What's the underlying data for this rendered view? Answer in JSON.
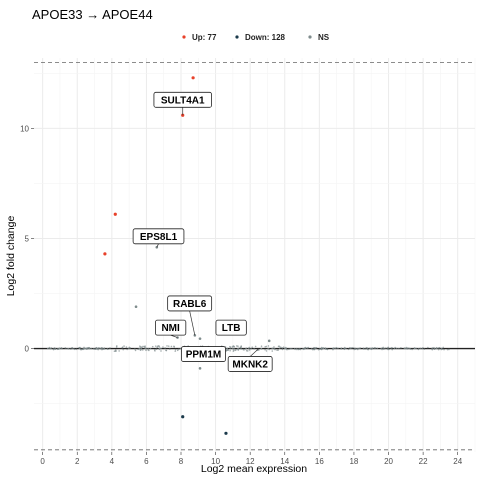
{
  "chart_data": {
    "type": "scatter",
    "title": "APOE33 → APOE44",
    "xlabel": "Log2 mean expression",
    "ylabel": "Log2 fold change",
    "xlim": [
      -0.5,
      25
    ],
    "ylim": [
      -4.7,
      13.2
    ],
    "x_ticks": [
      "0",
      "2",
      "4",
      "6",
      "8",
      "10",
      "12",
      "14",
      "16",
      "18",
      "20",
      "22",
      "24"
    ],
    "y_ticks": [
      "0",
      "5",
      "10"
    ],
    "grid": true,
    "legend_position": "top",
    "colors": {
      "up": "#e8412a",
      "down": "#1b3a4b",
      "ns": "#7f8c8d",
      "baseline": "#222222",
      "threshold": "#666666"
    },
    "thresholds": [
      13.0,
      -4.6
    ],
    "legend": [
      {
        "key": "up",
        "label": "Up: 77"
      },
      {
        "key": "down",
        "label": "Down: 128"
      },
      {
        "key": "ns",
        "label": "NS"
      }
    ],
    "points": [
      {
        "x": 8.7,
        "y": 12.3,
        "group": "up"
      },
      {
        "x": 8.1,
        "y": 10.6,
        "group": "up"
      },
      {
        "x": 4.2,
        "y": 6.1,
        "group": "up"
      },
      {
        "x": 3.6,
        "y": 4.3,
        "group": "up"
      },
      {
        "x": 6.6,
        "y": 4.6,
        "group": "ns"
      },
      {
        "x": 5.4,
        "y": 1.9,
        "group": "ns"
      },
      {
        "x": 7.8,
        "y": 0.5,
        "group": "ns"
      },
      {
        "x": 8.8,
        "y": 0.6,
        "group": "ns"
      },
      {
        "x": 9.1,
        "y": 0.45,
        "group": "ns"
      },
      {
        "x": 11.3,
        "y": 0.7,
        "group": "ns"
      },
      {
        "x": 13.1,
        "y": 0.35,
        "group": "ns"
      },
      {
        "x": 8.6,
        "y": -0.3,
        "group": "ns"
      },
      {
        "x": 9.1,
        "y": -0.9,
        "group": "ns"
      },
      {
        "x": 8.1,
        "y": -3.1,
        "group": "down"
      },
      {
        "x": 10.6,
        "y": -3.85,
        "group": "down"
      }
    ],
    "labels": [
      {
        "text": "SULT4A1",
        "x": 8.1,
        "y": 11.3,
        "px": 8.1,
        "py": 10.6
      },
      {
        "text": "EPS8L1",
        "x": 6.7,
        "y": 5.1,
        "px": 6.6,
        "py": 4.6
      },
      {
        "text": "RABL6",
        "x": 8.5,
        "y": 2.05,
        "px": 8.8,
        "py": 0.6
      },
      {
        "text": "NMI",
        "x": 7.4,
        "y": 0.95,
        "px": 7.8,
        "py": 0.5
      },
      {
        "text": "LTB",
        "x": 10.9,
        "y": 0.95,
        "px": 11.3,
        "py": 0.7
      },
      {
        "text": "PPM1M",
        "x": 9.3,
        "y": -0.25,
        "px": 8.6,
        "py": -0.3
      },
      {
        "text": "MKNK2",
        "x": 12.0,
        "y": -0.7,
        "px": 12.5,
        "py": 0.0
      }
    ]
  }
}
